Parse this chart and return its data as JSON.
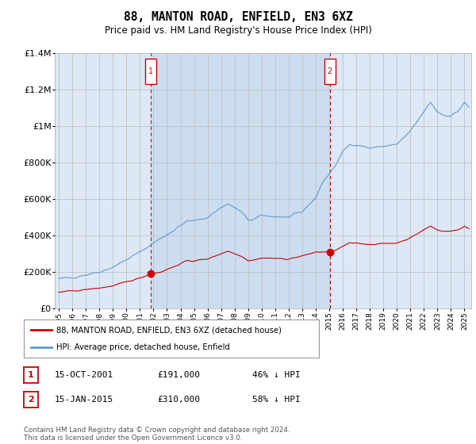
{
  "title": "88, MANTON ROAD, ENFIELD, EN3 6XZ",
  "subtitle": "Price paid vs. HM Land Registry's House Price Index (HPI)",
  "plot_bg_color": "#dce8f5",
  "ylim": [
    0,
    1400000
  ],
  "yticks": [
    0,
    200000,
    400000,
    600000,
    800000,
    1000000,
    1200000,
    1400000
  ],
  "ytick_labels": [
    "£0",
    "£200K",
    "£400K",
    "£600K",
    "£800K",
    "£1M",
    "£1.2M",
    "£1.4M"
  ],
  "sale1": {
    "date_num": 2001.79,
    "price": 191000,
    "label": "1",
    "date_str": "15-OCT-2001",
    "pct": "46% ↓ HPI"
  },
  "sale2": {
    "date_num": 2015.04,
    "price": 310000,
    "label": "2",
    "date_str": "15-JAN-2015",
    "pct": "58% ↓ HPI"
  },
  "legend_line1": "88, MANTON ROAD, ENFIELD, EN3 6XZ (detached house)",
  "legend_line2": "HPI: Average price, detached house, Enfield",
  "footer": "Contains HM Land Registry data © Crown copyright and database right 2024.\nThis data is licensed under the Open Government Licence v3.0.",
  "hpi_color": "#6699cc",
  "price_color": "#cc0000",
  "dashed_line_color": "#cc0000",
  "shade_color": "#ccddf0",
  "grid_color": "#bbbbbb",
  "xmin": 1994.7,
  "xmax": 2025.5,
  "xticks": [
    1995,
    1996,
    1997,
    1998,
    1999,
    2000,
    2001,
    2002,
    2003,
    2004,
    2005,
    2006,
    2007,
    2008,
    2009,
    2010,
    2011,
    2012,
    2013,
    2014,
    2015,
    2016,
    2017,
    2018,
    2019,
    2020,
    2021,
    2022,
    2023,
    2024,
    2025
  ]
}
